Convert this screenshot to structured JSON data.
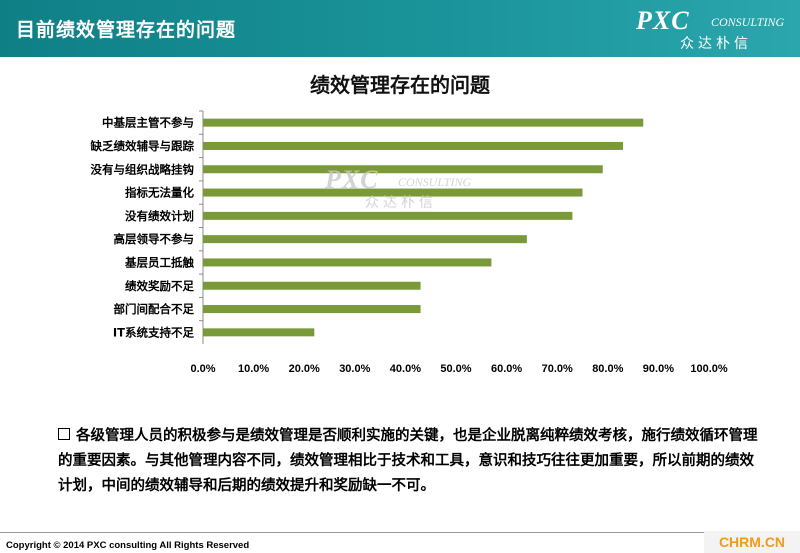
{
  "header": {
    "title": "目前绩效管理存在的问题",
    "logo_main": "PXC",
    "logo_sub": "CONSULTING",
    "logo_cn": "众达朴信"
  },
  "watermark": {
    "main": "PXC",
    "sub": "CONSULTING",
    "cn": "众达朴信"
  },
  "chart_data": {
    "type": "bar",
    "orientation": "horizontal",
    "title": "绩效管理存在的问题",
    "categories": [
      "中基层主管不参与",
      "缺乏绩效辅导与跟踪",
      "没有与组织战略挂钩",
      "指标无法量化",
      "没有绩效计划",
      "高层领导不参与",
      "基层员工抵触",
      "绩效奖励不足",
      "部门间配合不足",
      "IT系统支持不足"
    ],
    "values": [
      0.87,
      0.83,
      0.79,
      0.75,
      0.73,
      0.64,
      0.57,
      0.43,
      0.43,
      0.22
    ],
    "xlim": [
      0,
      1
    ],
    "ticks": [
      "0.0%",
      "10.0%",
      "20.0%",
      "30.0%",
      "40.0%",
      "50.0%",
      "60.0%",
      "70.0%",
      "80.0%",
      "90.0%",
      "100.0%"
    ],
    "bar_color": "#7a9a3a",
    "grid": false
  },
  "description": "各级管理人员的积极参与是绩效管理是否顺利实施的关键，也是企业脱离纯粹绩效考核，施行绩效循环管理的重要因素。与其他管理内容不同，绩效管理相比于技术和工具，意识和技巧往往更加重要，所以前期的绩效计划，中间的绩效辅导和后期的绩效提升和奖励缺一不可。",
  "footer": {
    "copyright": "Copyright © 2014  PXC consulting All Rights Reserved",
    "site": "CHRM.CN"
  }
}
